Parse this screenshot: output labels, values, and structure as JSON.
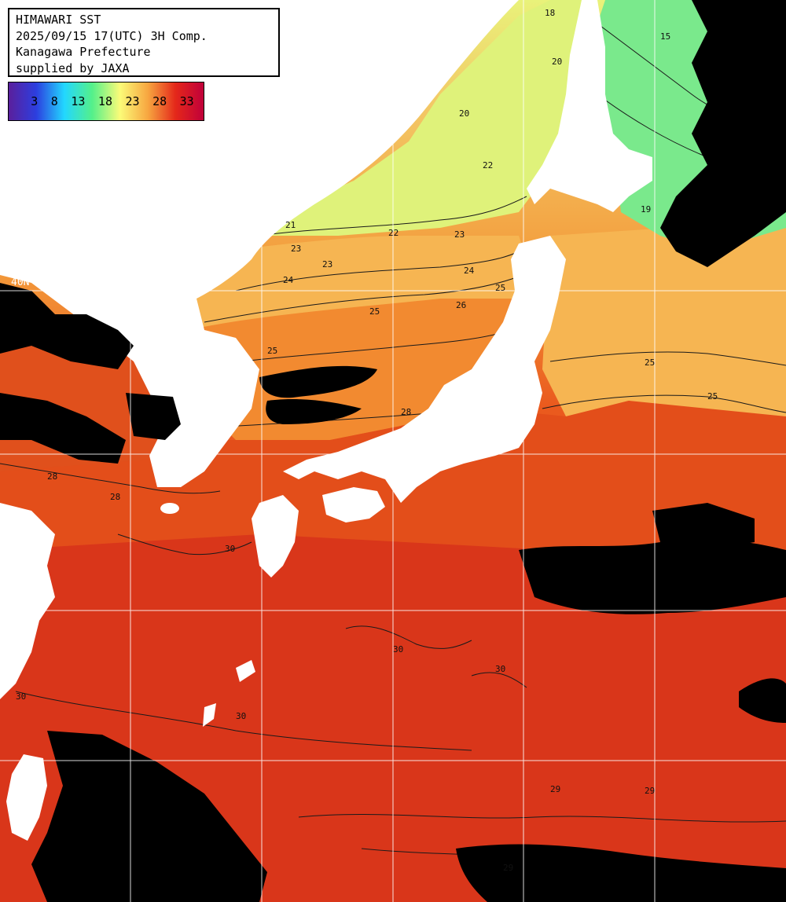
{
  "info": {
    "lines": [
      "HIMAWARI SST",
      "2025/09/15 17(UTC) 3H Comp.",
      "Kanagawa Prefecture",
      "supplied by JAXA"
    ]
  },
  "colorbar": {
    "ticks": [
      "3",
      "8",
      "13",
      "18",
      "23",
      "28",
      "33"
    ],
    "colors": [
      "#5a1f9c",
      "#2c3fe0",
      "#22d7ff",
      "#54f08a",
      "#fbfb78",
      "#f7a640",
      "#e4271a",
      "#c0003a"
    ]
  },
  "grid": {
    "lat_label": "40N"
  },
  "isotherm_labels": [
    {
      "text": "18"
    },
    {
      "text": "20"
    },
    {
      "text": "20"
    },
    {
      "text": "21"
    },
    {
      "text": "22"
    },
    {
      "text": "22"
    },
    {
      "text": "23"
    },
    {
      "text": "23"
    },
    {
      "text": "23"
    },
    {
      "text": "24"
    },
    {
      "text": "24"
    },
    {
      "text": "25"
    },
    {
      "text": "25"
    },
    {
      "text": "25"
    },
    {
      "text": "25"
    },
    {
      "text": "25"
    },
    {
      "text": "26"
    },
    {
      "text": "28"
    },
    {
      "text": "28"
    },
    {
      "text": "28"
    },
    {
      "text": "29"
    },
    {
      "text": "29"
    },
    {
      "text": "29"
    },
    {
      "text": "30"
    },
    {
      "text": "30"
    },
    {
      "text": "30"
    },
    {
      "text": "30"
    },
    {
      "text": "30"
    },
    {
      "text": "19"
    },
    {
      "text": "15"
    }
  ],
  "palette": {
    "land": "#ffffff",
    "cloud": "#000000",
    "cold": "#6ef08a",
    "cool": "#e6f57a",
    "mild": "#f8c862",
    "warm": "#f5962e",
    "hot": "#e24818",
    "hotter": "#d8321a",
    "grid": "#ffffff"
  }
}
